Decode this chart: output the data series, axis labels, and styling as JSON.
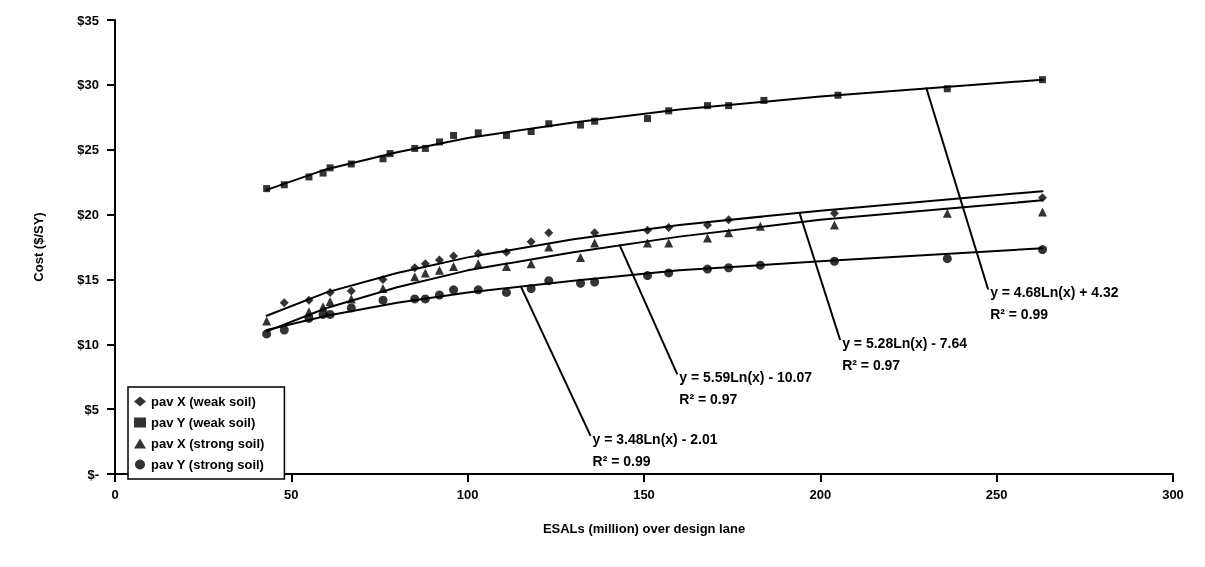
{
  "chart_data": {
    "type": "scatter",
    "xlabel": "ESALs (million) over design lane",
    "ylabel": "Cost ($/SY)",
    "xlim": [
      0,
      300
    ],
    "xticks": [
      0,
      50,
      100,
      150,
      200,
      250,
      300
    ],
    "ylim": [
      0,
      35
    ],
    "yticks": [
      {
        "value": 0,
        "label": "$-"
      },
      {
        "value": 5,
        "label": "$5"
      },
      {
        "value": 10,
        "label": "$10"
      },
      {
        "value": 15,
        "label": "$15"
      },
      {
        "value": 20,
        "label": "$20"
      },
      {
        "value": 25,
        "label": "$25"
      },
      {
        "value": 30,
        "label": "$30"
      },
      {
        "value": 35,
        "label": "$35"
      }
    ],
    "grid": false,
    "legend": "bottom left",
    "series": [
      {
        "name": "pav X (weak soil)",
        "color": "#000000",
        "marker": "diamond",
        "x": [
          48,
          55,
          61,
          67,
          76,
          85,
          88,
          92,
          96,
          103,
          111,
          118,
          123,
          136,
          151,
          157,
          168,
          174,
          204,
          263
        ],
        "values": [
          13.2,
          13.4,
          14.0,
          14.1,
          15.0,
          15.9,
          16.2,
          16.5,
          16.8,
          17.0,
          17.1,
          17.9,
          18.6,
          18.6,
          18.8,
          19.0,
          19.2,
          19.6,
          20.1,
          21.3
        ]
      },
      {
        "name": "pav Y (weak soil)",
        "color": "#000000",
        "marker": "square",
        "x": [
          43,
          48,
          55,
          59,
          61,
          67,
          76,
          78,
          85,
          88,
          92,
          96,
          103,
          111,
          118,
          123,
          132,
          136,
          151,
          157,
          168,
          174,
          184,
          205,
          236,
          263
        ],
        "values": [
          22.0,
          22.3,
          22.9,
          23.2,
          23.6,
          23.9,
          24.3,
          24.7,
          25.1,
          25.1,
          25.6,
          26.1,
          26.3,
          26.1,
          26.4,
          27.0,
          26.9,
          27.2,
          27.4,
          28.0,
          28.4,
          28.4,
          28.8,
          29.2,
          29.7,
          30.4
        ]
      },
      {
        "name": "pav X (strong soil)",
        "color": "#000000",
        "marker": "triangle",
        "x": [
          43,
          48,
          55,
          59,
          61,
          67,
          76,
          85,
          88,
          92,
          96,
          103,
          111,
          118,
          123,
          132,
          136,
          151,
          157,
          168,
          174,
          183,
          204,
          236,
          263
        ],
        "values": [
          11.8,
          null,
          12.5,
          12.9,
          13.3,
          13.5,
          14.3,
          15.2,
          15.5,
          15.7,
          16.0,
          16.2,
          16.0,
          16.2,
          17.5,
          16.7,
          17.8,
          17.8,
          17.8,
          18.2,
          18.6,
          19.1,
          19.2,
          20.1,
          20.2
        ]
      },
      {
        "name": "pav Y (strong soil)",
        "color": "#000000",
        "marker": "circle",
        "x": [
          43,
          48,
          55,
          59,
          61,
          67,
          76,
          85,
          88,
          92,
          96,
          103,
          111,
          118,
          123,
          132,
          136,
          151,
          157,
          168,
          174,
          183,
          204,
          236,
          263
        ],
        "values": [
          10.8,
          11.1,
          12.0,
          12.3,
          12.3,
          12.8,
          13.4,
          13.5,
          13.5,
          13.8,
          14.2,
          14.2,
          14.0,
          14.3,
          14.9,
          14.7,
          14.8,
          15.3,
          15.5,
          15.8,
          15.9,
          16.1,
          16.4,
          16.6,
          17.3
        ]
      },
      {
        "type": "line",
        "color": "#000000",
        "marker": "none",
        "x": [
          43,
          60,
          80,
          100,
          130,
          160,
          200,
          263
        ],
        "values": [
          12.2,
          14.0,
          15.5,
          16.7,
          18.1,
          19.2,
          20.3,
          21.8
        ]
      },
      {
        "type": "line",
        "color": "#000000",
        "marker": "none",
        "x": [
          43,
          60,
          80,
          100,
          130,
          160,
          200,
          263
        ],
        "values": [
          21.9,
          23.5,
          24.8,
          25.9,
          27.1,
          28.1,
          29.1,
          30.4
        ]
      },
      {
        "type": "line",
        "color": "#000000",
        "marker": "none",
        "x": [
          43,
          60,
          80,
          100,
          130,
          160,
          200,
          263
        ],
        "values": [
          11.0,
          12.8,
          14.4,
          15.7,
          17.1,
          18.3,
          19.6,
          21.1
        ]
      },
      {
        "type": "line",
        "color": "#000000",
        "marker": "none",
        "x": [
          43,
          60,
          80,
          100,
          130,
          160,
          200,
          263
        ],
        "values": [
          11.1,
          12.2,
          13.2,
          14.0,
          14.9,
          15.7,
          16.4,
          17.4
        ]
      }
    ],
    "annotations": [
      {
        "text": "y = 4.68Ln(x) + 4.32\nR² = 0.99",
        "x": 230,
        "y": 29.8
      },
      {
        "text": "y = 5.28Ln(x) - 7.64\nR² = 0.97",
        "x": 194,
        "y": 20.2
      },
      {
        "text": "y = 5.59Ln(x) - 10.07\nR² = 0.97",
        "x": 143,
        "y": 17.7
      },
      {
        "text": "y = 3.48Ln(x) - 2.01\nR² = 0.99",
        "x": 115,
        "y": 14.5
      }
    ]
  }
}
